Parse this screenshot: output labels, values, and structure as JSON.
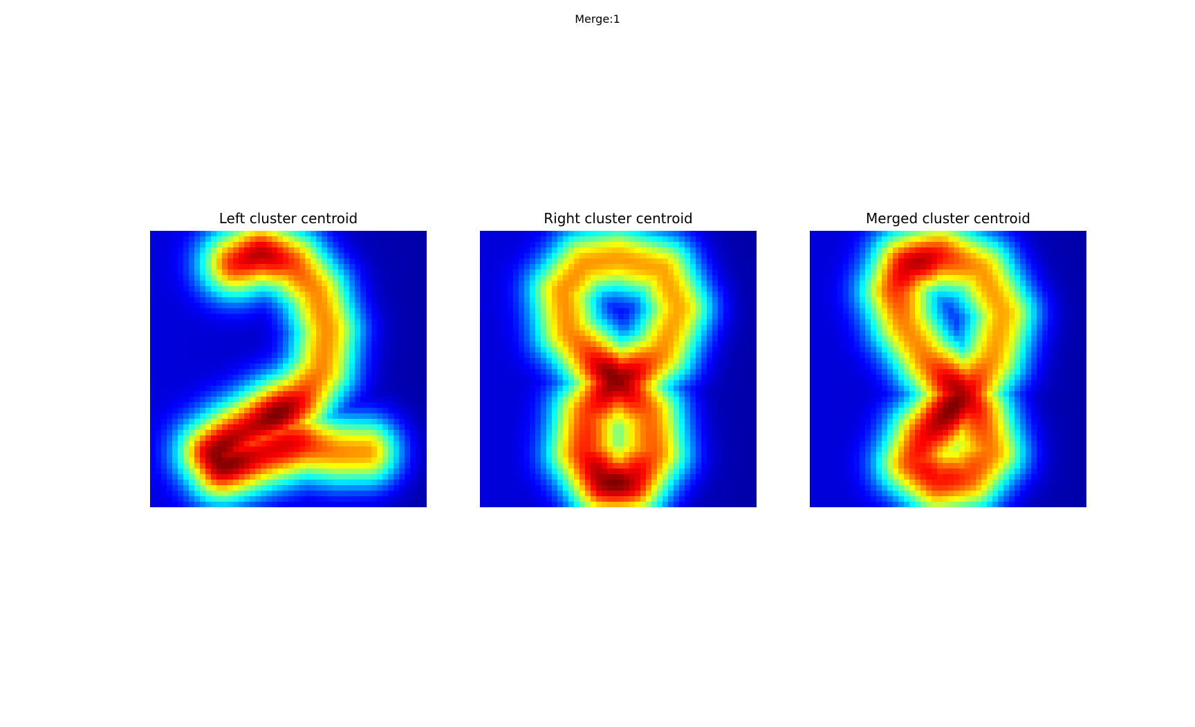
{
  "figure": {
    "suptitle": "Merge:1"
  },
  "chart_data": [
    {
      "type": "heatmap",
      "title": "Left cluster centroid",
      "colormap": "jet",
      "grid": false,
      "axes_visible": false,
      "shape": "digit-2",
      "stroke": [
        [
          0.3,
          0.12
        ],
        [
          0.4,
          0.08
        ],
        [
          0.52,
          0.12
        ],
        [
          0.6,
          0.22
        ],
        [
          0.64,
          0.36
        ],
        [
          0.62,
          0.5
        ],
        [
          0.55,
          0.6
        ],
        [
          0.44,
          0.66
        ],
        [
          0.3,
          0.74
        ],
        [
          0.22,
          0.8
        ],
        [
          0.26,
          0.86
        ],
        [
          0.4,
          0.82
        ],
        [
          0.56,
          0.78
        ],
        [
          0.68,
          0.8
        ],
        [
          0.78,
          0.8
        ]
      ],
      "hotspots": [
        [
          0.48,
          0.69,
          1.0
        ],
        [
          0.27,
          0.82,
          0.9
        ],
        [
          0.4,
          0.09,
          0.7
        ]
      ]
    },
    {
      "type": "heatmap",
      "title": "Right cluster centroid",
      "colormap": "jet",
      "grid": false,
      "axes_visible": false,
      "shape": "digit-8",
      "stroke": [
        [
          0.5,
          0.1
        ],
        [
          0.66,
          0.14
        ],
        [
          0.72,
          0.28
        ],
        [
          0.66,
          0.44
        ],
        [
          0.56,
          0.52
        ],
        [
          0.48,
          0.56
        ],
        [
          0.38,
          0.66
        ],
        [
          0.36,
          0.8
        ],
        [
          0.44,
          0.92
        ],
        [
          0.56,
          0.92
        ],
        [
          0.64,
          0.8
        ],
        [
          0.62,
          0.66
        ],
        [
          0.52,
          0.56
        ],
        [
          0.42,
          0.48
        ],
        [
          0.32,
          0.36
        ],
        [
          0.3,
          0.22
        ],
        [
          0.38,
          0.12
        ],
        [
          0.5,
          0.1
        ]
      ],
      "hotspots": [
        [
          0.49,
          0.52,
          1.0
        ],
        [
          0.49,
          0.91,
          0.9
        ],
        [
          0.48,
          0.76,
          0.6
        ]
      ]
    },
    {
      "type": "heatmap",
      "title": "Merged cluster centroid",
      "colormap": "jet",
      "grid": false,
      "axes_visible": false,
      "shape": "digit-2-8-blend",
      "stroke": [
        [
          0.34,
          0.12
        ],
        [
          0.48,
          0.08
        ],
        [
          0.62,
          0.14
        ],
        [
          0.7,
          0.3
        ],
        [
          0.66,
          0.46
        ],
        [
          0.58,
          0.58
        ],
        [
          0.5,
          0.66
        ],
        [
          0.4,
          0.74
        ],
        [
          0.36,
          0.84
        ],
        [
          0.46,
          0.92
        ],
        [
          0.58,
          0.9
        ],
        [
          0.66,
          0.8
        ],
        [
          0.62,
          0.66
        ],
        [
          0.54,
          0.56
        ],
        [
          0.42,
          0.46
        ],
        [
          0.34,
          0.34
        ],
        [
          0.3,
          0.22
        ],
        [
          0.34,
          0.12
        ]
      ],
      "hotspots": [
        [
          0.51,
          0.61,
          1.0
        ],
        [
          0.4,
          0.14,
          0.85
        ],
        [
          0.48,
          0.82,
          0.8
        ]
      ]
    }
  ]
}
